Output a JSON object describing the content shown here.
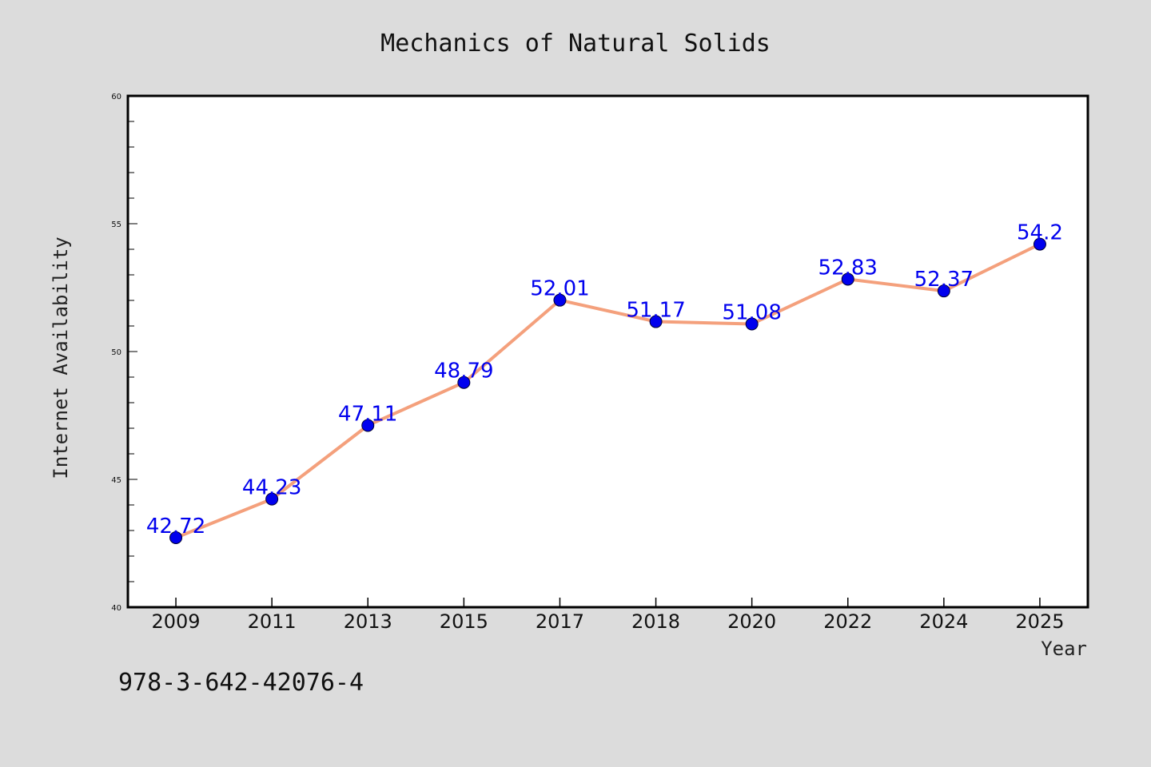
{
  "chart_data": {
    "type": "line",
    "title": "Mechanics of Natural Solids",
    "xlabel": "Year",
    "ylabel": "Internet Availability",
    "categories": [
      "2009",
      "2011",
      "2013",
      "2015",
      "2017",
      "2018",
      "2020",
      "2022",
      "2024",
      "2025"
    ],
    "series": [
      {
        "values": [
          42.72,
          44.23,
          47.11,
          48.79,
          52.01,
          51.17,
          51.08,
          52.83,
          52.37,
          54.2
        ],
        "labels": [
          "42.72",
          "44.23",
          "47.11",
          "48.79",
          "52.01",
          "51.17",
          "51.08",
          "52.83",
          "52.37",
          "54.2"
        ],
        "line_color": "#f4a07c",
        "marker_color": "#0000ee",
        "label_color": "#0000ee"
      }
    ],
    "ylim": [
      40,
      60
    ],
    "yticks": [
      "40",
      "45",
      "50",
      "55",
      "60"
    ],
    "grid": false,
    "legend": "none"
  },
  "footer_text": "978-3-642-42076-4",
  "colors": {
    "background": "#dcdcdc",
    "plot_background": "#ffffff",
    "axes": "#000000"
  }
}
